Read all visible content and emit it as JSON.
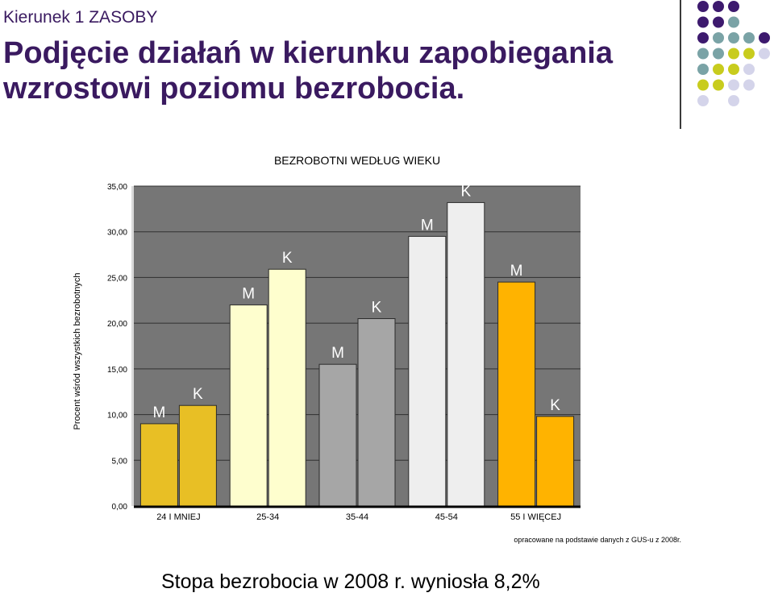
{
  "header": {
    "kicker": "Kierunek 1 ZASOBY",
    "title": "Podjęcie działań w kierunku zapobiegania wzrostowi poziomu bezrobocia."
  },
  "decoration": {
    "dot_colors": {
      "purple": "#3d1a6e",
      "teal": "#7aa3a6",
      "lime": "#c8cc1e",
      "lavender": "#d4d4ea"
    },
    "dot_rows": [
      [
        "purple",
        "purple",
        "purple",
        "",
        ""
      ],
      [
        "purple",
        "purple",
        "teal",
        "",
        ""
      ],
      [
        "purple",
        "teal",
        "teal",
        "teal",
        "purple"
      ],
      [
        "teal",
        "teal",
        "lime",
        "lime",
        "lavender"
      ],
      [
        "teal",
        "lime",
        "lime",
        "lavender",
        ""
      ],
      [
        "lime",
        "lime",
        "lavender",
        "lavender",
        ""
      ],
      [
        "lavender",
        "",
        "lavender",
        "",
        ""
      ]
    ]
  },
  "chart_data": {
    "type": "bar",
    "title": "BEZROBOTNI WEDŁUG WIEKU",
    "ylabel": "Procent wśród wszystkich bezrobotnych",
    "xlabel": "",
    "ylim": [
      0,
      35
    ],
    "yticks": [
      "0,00",
      "5,00",
      "10,00",
      "15,00",
      "20,00",
      "25,00",
      "30,00",
      "35,00"
    ],
    "grid": true,
    "categories": [
      "24 I MNIEJ",
      "25-34",
      "35-44",
      "45-54",
      "55 I WIĘCEJ"
    ],
    "bars": [
      {
        "category": "24 I MNIEJ",
        "label": "M",
        "value": 9.0,
        "color": "#e8bf25"
      },
      {
        "category": "24 I MNIEJ",
        "label": "K",
        "value": 11.0,
        "color": "#e8bf25"
      },
      {
        "category": "25-34",
        "label": "M",
        "value": 22.0,
        "color": "#fefece"
      },
      {
        "category": "25-34",
        "label": "K",
        "value": 25.9,
        "color": "#fefece"
      },
      {
        "category": "35-44",
        "label": "M",
        "value": 15.5,
        "color": "#a6a6a6"
      },
      {
        "category": "35-44",
        "label": "K",
        "value": 20.5,
        "color": "#a6a6a6"
      },
      {
        "category": "45-54",
        "label": "M",
        "value": 29.5,
        "color": "#eeeeee"
      },
      {
        "category": "45-54",
        "label": "K",
        "value": 33.2,
        "color": "#eeeeee"
      },
      {
        "category": "55 I WIĘCEJ",
        "label": "M",
        "value": 24.5,
        "color": "#ffb300"
      },
      {
        "category": "55 I WIĘCEJ",
        "label": "K",
        "value": 9.8,
        "color": "#ffb300"
      }
    ],
    "plot_background": "#767676",
    "source_note": "opracowane na podstawie danych z GUS-u z 2008r."
  },
  "footer": {
    "text": "Stopa bezrobocia w 2008 r. wyniosła 8,2%"
  }
}
